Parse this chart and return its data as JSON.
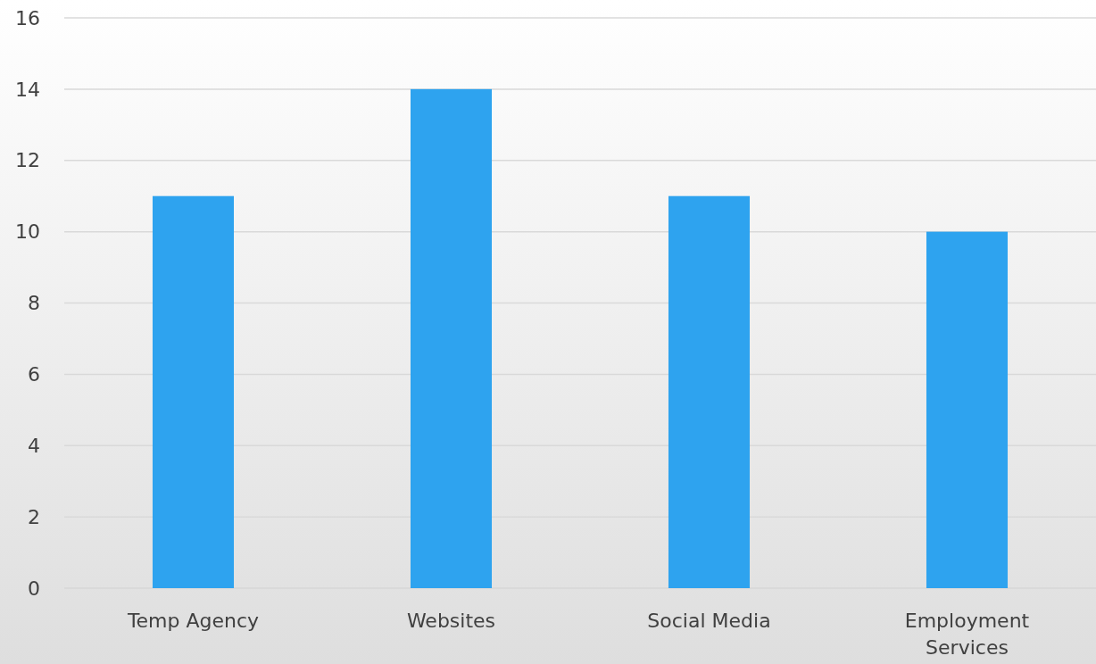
{
  "chart_data": {
    "type": "bar",
    "categories": [
      "Temp Agency",
      "Websites",
      "Social Media",
      "Employment Services"
    ],
    "values": [
      11,
      14,
      11,
      10
    ],
    "color": "#2ea3ef",
    "ylim": [
      0,
      16
    ],
    "yticks": [
      0,
      2,
      4,
      6,
      8,
      10,
      12,
      14,
      16
    ],
    "grid": "y"
  }
}
